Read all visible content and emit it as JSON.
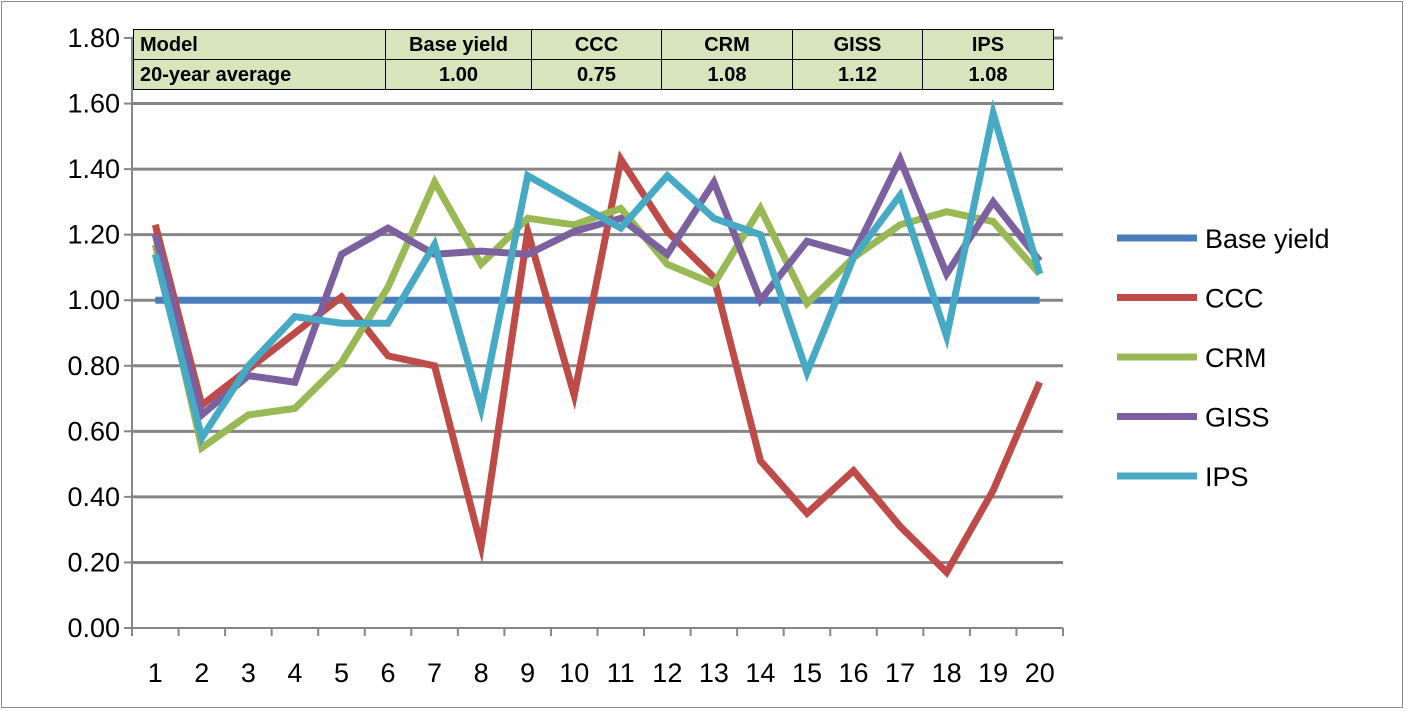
{
  "chart_data": {
    "type": "line",
    "x": [
      1,
      2,
      3,
      4,
      5,
      6,
      7,
      8,
      9,
      10,
      11,
      12,
      13,
      14,
      15,
      16,
      17,
      18,
      19,
      20
    ],
    "x_tick_labels": [
      "1",
      "2",
      "3",
      "4",
      "5",
      "6",
      "7",
      "8",
      "9",
      "10",
      "11",
      "12",
      "13",
      "14",
      "15",
      "16",
      "17",
      "18",
      "19",
      "20"
    ],
    "ylim": [
      0,
      1.8
    ],
    "y_tick_labels": [
      "0.00",
      "0.20",
      "0.40",
      "0.60",
      "0.80",
      "1.00",
      "1.20",
      "1.40",
      "1.60",
      "1.80"
    ],
    "grid": true,
    "legend_position": "right",
    "series": [
      {
        "name": "Base yield",
        "color": "#4a7ebb",
        "values": [
          1.0,
          1.0,
          1.0,
          1.0,
          1.0,
          1.0,
          1.0,
          1.0,
          1.0,
          1.0,
          1.0,
          1.0,
          1.0,
          1.0,
          1.0,
          1.0,
          1.0,
          1.0,
          1.0,
          1.0
        ]
      },
      {
        "name": "CCC",
        "color": "#be4b48",
        "values": [
          1.23,
          0.68,
          0.79,
          0.9,
          1.01,
          0.83,
          0.8,
          0.25,
          1.21,
          0.71,
          1.43,
          1.21,
          1.07,
          0.51,
          0.35,
          0.48,
          0.31,
          0.17,
          0.42,
          0.75
        ]
      },
      {
        "name": "CRM",
        "color": "#98b954",
        "values": [
          1.17,
          0.55,
          0.65,
          0.67,
          0.81,
          1.04,
          1.36,
          1.11,
          1.25,
          1.23,
          1.28,
          1.11,
          1.05,
          1.28,
          0.99,
          1.13,
          1.23,
          1.27,
          1.24,
          1.08
        ]
      },
      {
        "name": "GISS",
        "color": "#7d60a0",
        "values": [
          1.2,
          0.65,
          0.77,
          0.75,
          1.14,
          1.22,
          1.14,
          1.15,
          1.14,
          1.21,
          1.25,
          1.14,
          1.36,
          1.0,
          1.18,
          1.14,
          1.43,
          1.08,
          1.3,
          1.12
        ]
      },
      {
        "name": "IPS",
        "color": "#46aac5",
        "values": [
          1.14,
          0.58,
          0.8,
          0.95,
          0.93,
          0.93,
          1.17,
          0.67,
          1.38,
          1.3,
          1.22,
          1.38,
          1.25,
          1.2,
          0.78,
          1.13,
          1.32,
          0.89,
          1.57,
          1.08
        ]
      }
    ],
    "table": {
      "rows": [
        [
          "Model",
          "Base yield",
          "CCC",
          "CRM",
          "GISS",
          "IPS"
        ],
        [
          "20-year average",
          "1.00",
          "0.75",
          "1.08",
          "1.12",
          "1.08"
        ]
      ]
    }
  }
}
